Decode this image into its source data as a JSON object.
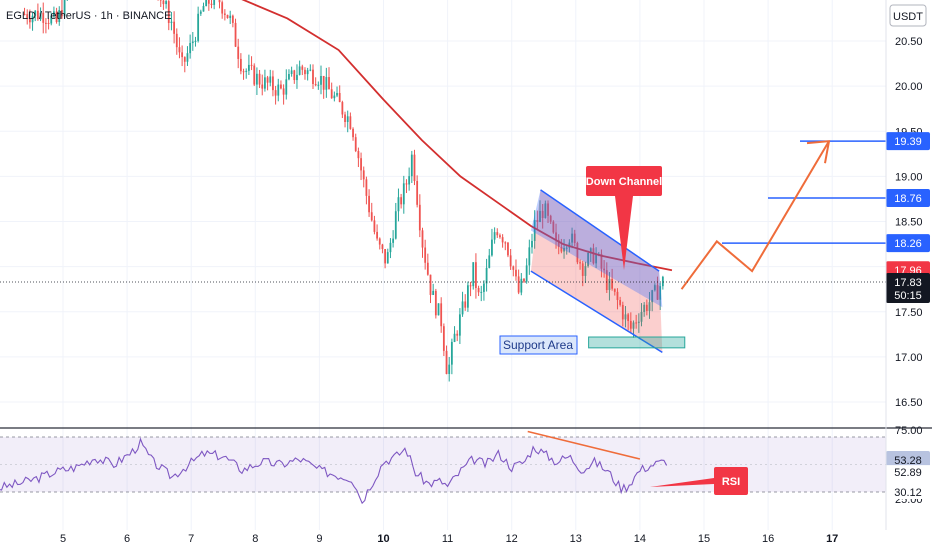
{
  "header": {
    "symbol": "EGLD / TetherUS · 1h · BINANCE"
  },
  "colors": {
    "up": "#26a69a",
    "down": "#ef5350",
    "ma": "#d32f2f",
    "channel": "#2962ff",
    "target_line": "#2962ff",
    "projection": "#ef6c3a",
    "rsi_line": "#7e57c2",
    "annotation": "#f23645"
  },
  "chart_data": [
    {
      "type": "candlestick",
      "name": "price",
      "x_ticks": [
        "5",
        "6",
        "7",
        "8",
        "9",
        "10",
        "11",
        "12",
        "13",
        "14",
        "15",
        "16",
        "17"
      ],
      "y_ticks": [
        "20.50",
        "20.00",
        "19.50",
        "19.00",
        "18.50",
        "18.00",
        "17.50",
        "17.00",
        "16.50"
      ],
      "ylim": [
        16.2,
        21.0
      ],
      "currency_label": "USDT",
      "last_price": "17.83",
      "countdown": "50:15",
      "ma_value": "17.96",
      "targets": [
        {
          "label": "19.39",
          "value": 19.39
        },
        {
          "label": "18.76",
          "value": 18.76
        },
        {
          "label": "18.26",
          "value": 18.26
        }
      ],
      "channel_upper": [
        {
          "x": 12.45,
          "y": 18.85
        },
        {
          "x": 14.3,
          "y": 17.95
        }
      ],
      "channel_lower": [
        {
          "x": 12.3,
          "y": 17.95
        },
        {
          "x": 14.35,
          "y": 17.05
        }
      ],
      "support_zone": {
        "x_from": 13.2,
        "x_to": 14.7,
        "y_low": 17.1,
        "y_high": 17.22
      },
      "projection": [
        {
          "x": 14.65,
          "y": 17.75
        },
        {
          "x": 15.2,
          "y": 18.28
        },
        {
          "x": 15.75,
          "y": 17.95
        },
        {
          "x": 16.95,
          "y": 19.39
        }
      ],
      "annotations": {
        "down_channel": "Down Channel",
        "support": "Support Area"
      },
      "ma_points": [
        [
          6.6,
          21.2
        ],
        [
          7.5,
          21.05
        ],
        [
          8.5,
          20.75
        ],
        [
          9.3,
          20.4
        ],
        [
          10.0,
          19.85
        ],
        [
          10.6,
          19.4
        ],
        [
          11.2,
          19.0
        ],
        [
          11.8,
          18.7
        ],
        [
          12.3,
          18.45
        ],
        [
          12.8,
          18.25
        ],
        [
          13.4,
          18.12
        ],
        [
          14.0,
          18.03
        ],
        [
          14.5,
          17.96
        ]
      ],
      "price_path": [
        [
          4.7,
          20.8
        ],
        [
          4.9,
          20.7
        ],
        [
          5.1,
          21.1
        ],
        [
          5.5,
          21.3
        ],
        [
          6.0,
          21.4
        ],
        [
          6.4,
          21.2
        ],
        [
          6.7,
          20.7
        ],
        [
          6.85,
          20.2
        ],
        [
          7.0,
          20.45
        ],
        [
          7.2,
          20.9
        ],
        [
          7.4,
          21.0
        ],
        [
          7.6,
          20.75
        ],
        [
          7.8,
          20.2
        ],
        [
          8.1,
          20.05
        ],
        [
          8.4,
          19.95
        ],
        [
          8.7,
          20.2
        ],
        [
          9.0,
          20.1
        ],
        [
          9.3,
          19.8
        ],
        [
          9.5,
          19.6
        ],
        [
          9.7,
          18.9
        ],
        [
          9.9,
          18.25
        ],
        [
          10.05,
          18.05
        ],
        [
          10.2,
          18.6
        ],
        [
          10.35,
          18.9
        ],
        [
          10.45,
          19.25
        ],
        [
          10.6,
          18.3
        ],
        [
          10.75,
          17.7
        ],
        [
          10.9,
          17.4
        ],
        [
          11.0,
          16.8
        ],
        [
          11.1,
          17.2
        ],
        [
          11.25,
          17.55
        ],
        [
          11.4,
          17.95
        ],
        [
          11.5,
          17.6
        ],
        [
          11.6,
          17.9
        ],
        [
          11.75,
          18.45
        ],
        [
          11.9,
          18.3
        ],
        [
          12.0,
          18.05
        ],
        [
          12.1,
          17.7
        ],
        [
          12.2,
          17.85
        ],
        [
          12.35,
          18.45
        ],
        [
          12.5,
          18.65
        ],
        [
          12.7,
          18.2
        ],
        [
          12.9,
          18.35
        ],
        [
          13.1,
          18.0
        ],
        [
          13.3,
          18.15
        ],
        [
          13.5,
          17.8
        ],
        [
          13.7,
          17.55
        ],
        [
          13.85,
          17.3
        ],
        [
          14.0,
          17.5
        ],
        [
          14.2,
          17.65
        ],
        [
          14.35,
          17.83
        ]
      ]
    },
    {
      "type": "line",
      "name": "RSI",
      "y_ticks": [
        "75.00",
        "25.00"
      ],
      "levels": [
        70,
        30
      ],
      "ylim": [
        20,
        80
      ],
      "values_labels": [
        "53.28",
        "52.89",
        "30.12"
      ],
      "annotation": "RSI",
      "divergence_line": [
        {
          "x": 12.25,
          "y": 74
        },
        {
          "x": 14.0,
          "y": 54
        }
      ],
      "rsi_points": [
        [
          4.0,
          33
        ],
        [
          4.3,
          36
        ],
        [
          4.6,
          40
        ],
        [
          4.9,
          45
        ],
        [
          5.2,
          48
        ],
        [
          5.5,
          55
        ],
        [
          5.8,
          50
        ],
        [
          6.1,
          60
        ],
        [
          6.2,
          66
        ],
        [
          6.4,
          52
        ],
        [
          6.7,
          41
        ],
        [
          6.9,
          48
        ],
        [
          7.2,
          58
        ],
        [
          7.5,
          56
        ],
        [
          7.8,
          46
        ],
        [
          8.1,
          52
        ],
        [
          8.4,
          50
        ],
        [
          8.7,
          54
        ],
        [
          9.0,
          46
        ],
        [
          9.3,
          42
        ],
        [
          9.5,
          40
        ],
        [
          9.6,
          32
        ],
        [
          9.65,
          22
        ],
        [
          9.8,
          35
        ],
        [
          10.0,
          52
        ],
        [
          10.2,
          56
        ],
        [
          10.35,
          62
        ],
        [
          10.5,
          44
        ],
        [
          10.7,
          36
        ],
        [
          10.9,
          38
        ],
        [
          11.0,
          34
        ],
        [
          11.2,
          45
        ],
        [
          11.4,
          54
        ],
        [
          11.6,
          50
        ],
        [
          11.8,
          58
        ],
        [
          12.0,
          48
        ],
        [
          12.2,
          52
        ],
        [
          12.35,
          63
        ],
        [
          12.5,
          58
        ],
        [
          12.7,
          52
        ],
        [
          12.9,
          56
        ],
        [
          13.1,
          46
        ],
        [
          13.3,
          52
        ],
        [
          13.5,
          45
        ],
        [
          13.7,
          33
        ],
        [
          13.8,
          34
        ],
        [
          14.0,
          46
        ],
        [
          14.2,
          50
        ],
        [
          14.45,
          53
        ]
      ]
    }
  ]
}
